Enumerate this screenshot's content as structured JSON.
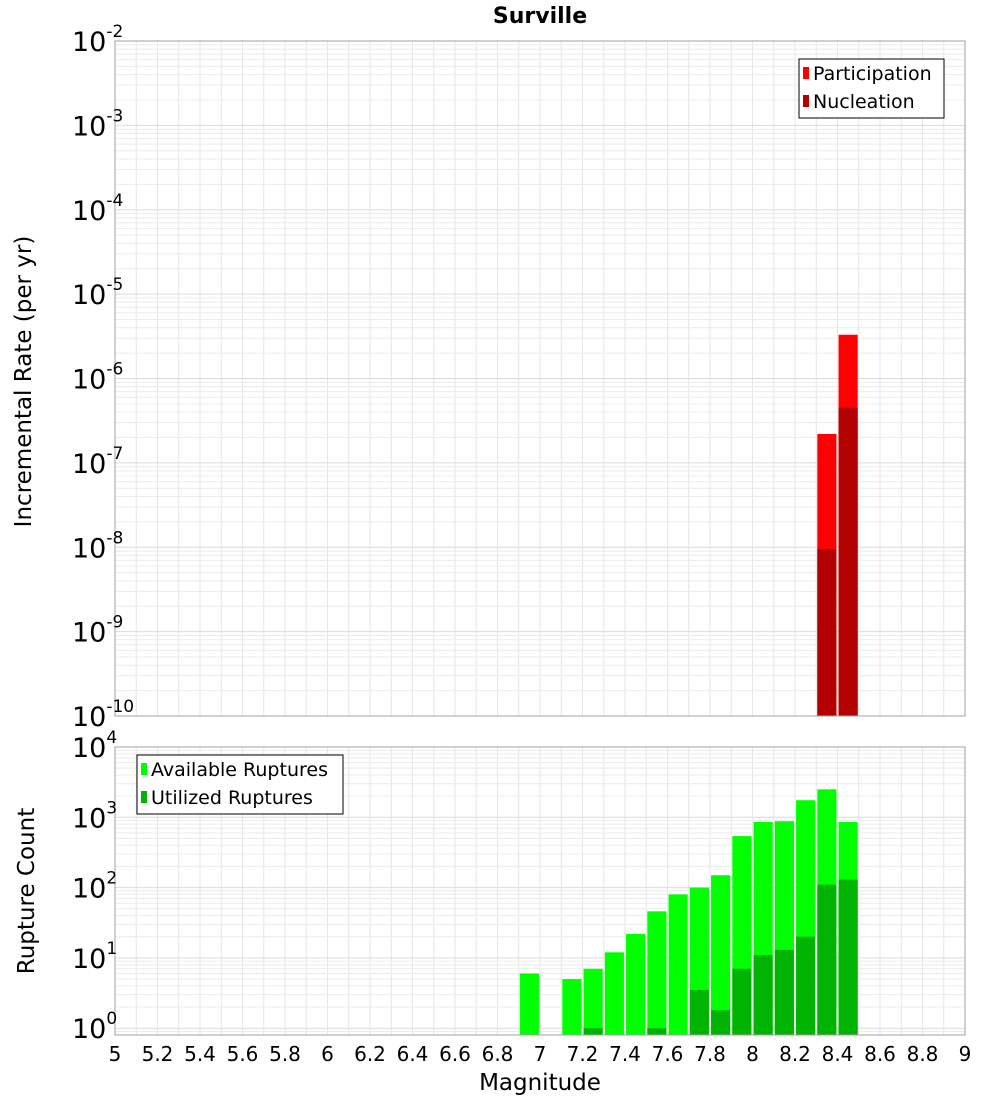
{
  "chart_data": [
    {
      "type": "bar",
      "title": "Surville",
      "xlabel": "",
      "ylabel": "Incremental Rate (per yr)",
      "x_range": [
        5,
        9
      ],
      "ylim": [
        1e-10,
        0.01
      ],
      "log_y": true,
      "grid": true,
      "legend_placement": "top-right",
      "y_ticks": [
        {
          "base": "10",
          "exp": "-10",
          "value": 1e-10
        },
        {
          "base": "10",
          "exp": "-9",
          "value": 1e-09
        },
        {
          "base": "10",
          "exp": "-8",
          "value": 1e-08
        },
        {
          "base": "10",
          "exp": "-7",
          "value": 1e-07
        },
        {
          "base": "10",
          "exp": "-6",
          "value": 1e-06
        },
        {
          "base": "10",
          "exp": "-5",
          "value": 1e-05
        },
        {
          "base": "10",
          "exp": "-4",
          "value": 0.0001
        },
        {
          "base": "10",
          "exp": "-3",
          "value": 0.001
        },
        {
          "base": "10",
          "exp": "-2",
          "value": 0.01
        }
      ],
      "series": [
        {
          "name": "Participation",
          "color": "#ff0000",
          "x": [
            8.35,
            8.45
          ],
          "values": [
            2.2e-07,
            3.3e-06
          ]
        },
        {
          "name": "Nucleation",
          "color": "#b30000",
          "x": [
            8.35,
            8.45
          ],
          "values": [
            9.5e-09,
            4.5e-07
          ]
        }
      ]
    },
    {
      "type": "bar",
      "title": "",
      "xlabel": "Magnitude",
      "ylabel": "Rupture Count",
      "x_range": [
        5,
        9
      ],
      "ylim": [
        0.8,
        10000
      ],
      "log_y": true,
      "grid": true,
      "legend_placement": "top-left",
      "x_ticks": [
        "5",
        "5.2",
        "5.4",
        "5.6",
        "5.8",
        "6",
        "6.2",
        "6.4",
        "6.6",
        "6.8",
        "7",
        "7.2",
        "7.4",
        "7.6",
        "7.8",
        "8",
        "8.2",
        "8.4",
        "8.6",
        "8.8",
        "9"
      ],
      "y_ticks": [
        {
          "base": "10",
          "exp": "0",
          "value": 1
        },
        {
          "base": "10",
          "exp": "1",
          "value": 10
        },
        {
          "base": "10",
          "exp": "2",
          "value": 100
        },
        {
          "base": "10",
          "exp": "3",
          "value": 1000
        },
        {
          "base": "10",
          "exp": "4",
          "value": 10000
        }
      ],
      "series": [
        {
          "name": "Available Ruptures",
          "color": "#00ff00",
          "x": [
            6.95,
            7.15,
            7.25,
            7.35,
            7.45,
            7.55,
            7.65,
            7.75,
            7.85,
            7.95,
            8.05,
            8.15,
            8.25,
            8.35,
            8.45
          ],
          "values": [
            6,
            5,
            7,
            12,
            22,
            46,
            80,
            100,
            150,
            540,
            860,
            880,
            1750,
            2500,
            860
          ]
        },
        {
          "name": "Utilized Ruptures",
          "color": "#00b300",
          "x": [
            7.25,
            7.55,
            7.75,
            7.85,
            7.95,
            8.05,
            8.15,
            8.25,
            8.35,
            8.45
          ],
          "values": [
            1,
            1,
            3.5,
            1.8,
            7,
            11,
            13,
            20,
            110,
            130
          ]
        }
      ]
    }
  ]
}
